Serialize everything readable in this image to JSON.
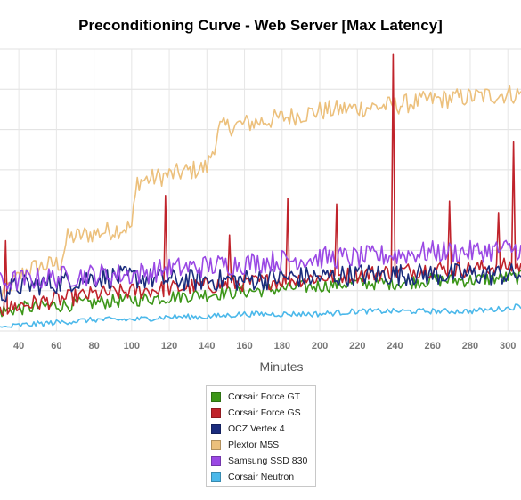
{
  "chart_data": {
    "type": "line",
    "title": "Preconditioning Curve - Web Server [Max Latency]",
    "xlabel": "Minutes",
    "ylabel": "",
    "x_ticks": [
      40,
      60,
      80,
      100,
      120,
      140,
      160,
      180,
      200,
      220,
      240,
      260,
      280,
      300
    ],
    "xlim": [
      30,
      307
    ],
    "ylim": [
      0,
      100
    ],
    "grid": true,
    "legend_position": "bottom-center",
    "series": [
      {
        "name": "Corsair Force GT",
        "color": "#3c9618",
        "points": [
          [
            30,
            7
          ],
          [
            40,
            8
          ],
          [
            60,
            9
          ],
          [
            80,
            10
          ],
          [
            100,
            11
          ],
          [
            120,
            12
          ],
          [
            140,
            13
          ],
          [
            160,
            14
          ],
          [
            180,
            15
          ],
          [
            200,
            16
          ],
          [
            220,
            17
          ],
          [
            240,
            17
          ],
          [
            260,
            18
          ],
          [
            280,
            18
          ],
          [
            300,
            19
          ],
          [
            307,
            19
          ]
        ],
        "noise": 2.5,
        "spikes": []
      },
      {
        "name": "Corsair Force GS",
        "color": "#c0232b",
        "points": [
          [
            30,
            7
          ],
          [
            40,
            9
          ],
          [
            60,
            11
          ],
          [
            80,
            13
          ],
          [
            100,
            14
          ],
          [
            120,
            15
          ],
          [
            140,
            16
          ],
          [
            160,
            17
          ],
          [
            180,
            18
          ],
          [
            200,
            19
          ],
          [
            220,
            20
          ],
          [
            240,
            21
          ],
          [
            260,
            22
          ],
          [
            280,
            22
          ],
          [
            300,
            23
          ],
          [
            307,
            23
          ]
        ],
        "noise": 3,
        "spikes": [
          [
            33,
            32
          ],
          [
            118,
            48
          ],
          [
            152,
            34
          ],
          [
            183,
            47
          ],
          [
            209,
            45
          ],
          [
            239,
            98
          ],
          [
            269,
            46
          ],
          [
            295,
            42
          ],
          [
            303,
            67
          ]
        ]
      },
      {
        "name": "OCZ Vertex 4",
        "color": "#1a2b7d",
        "points": [
          [
            30,
            13
          ],
          [
            40,
            16
          ],
          [
            60,
            17
          ],
          [
            80,
            19
          ],
          [
            100,
            19
          ],
          [
            120,
            18
          ],
          [
            140,
            18
          ],
          [
            160,
            18
          ],
          [
            180,
            19
          ],
          [
            200,
            19
          ],
          [
            220,
            20
          ],
          [
            240,
            20
          ],
          [
            260,
            20
          ],
          [
            280,
            20
          ],
          [
            300,
            20
          ],
          [
            307,
            20
          ]
        ],
        "noise": 4,
        "spikes": []
      },
      {
        "name": "Plextor M5S",
        "color": "#ecc07c",
        "points": [
          [
            30,
            13
          ],
          [
            45,
            22
          ],
          [
            62,
            24
          ],
          [
            66,
            33
          ],
          [
            100,
            37
          ],
          [
            103,
            53
          ],
          [
            140,
            58
          ],
          [
            147,
            72
          ],
          [
            175,
            75
          ],
          [
            200,
            78
          ],
          [
            220,
            79
          ],
          [
            240,
            80
          ],
          [
            260,
            82
          ],
          [
            280,
            83
          ],
          [
            300,
            84
          ],
          [
            307,
            84
          ]
        ],
        "noise": 3.5,
        "spikes": []
      },
      {
        "name": "Samsung SSD 830",
        "color": "#9a48e4",
        "points": [
          [
            30,
            17
          ],
          [
            40,
            18
          ],
          [
            60,
            19
          ],
          [
            80,
            20
          ],
          [
            100,
            20
          ],
          [
            120,
            22
          ],
          [
            140,
            23
          ],
          [
            160,
            24
          ],
          [
            180,
            25
          ],
          [
            200,
            26
          ],
          [
            220,
            26
          ],
          [
            240,
            27
          ],
          [
            260,
            28
          ],
          [
            280,
            28
          ],
          [
            300,
            29
          ],
          [
            307,
            29
          ]
        ],
        "noise": 4,
        "spikes": []
      },
      {
        "name": "Corsair Neutron",
        "color": "#4bb8ea",
        "points": [
          [
            30,
            1
          ],
          [
            40,
            2
          ],
          [
            60,
            3
          ],
          [
            80,
            4
          ],
          [
            100,
            4
          ],
          [
            120,
            5
          ],
          [
            140,
            5
          ],
          [
            160,
            6
          ],
          [
            180,
            6
          ],
          [
            200,
            6
          ],
          [
            220,
            7
          ],
          [
            240,
            7
          ],
          [
            260,
            7
          ],
          [
            280,
            7
          ],
          [
            300,
            8
          ],
          [
            307,
            9
          ]
        ],
        "noise": 1,
        "spikes": []
      }
    ]
  }
}
